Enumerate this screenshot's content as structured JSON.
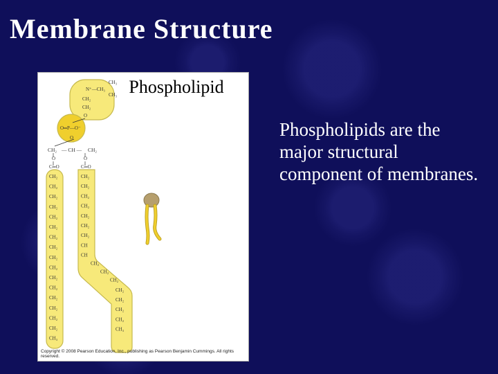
{
  "slide": {
    "title": "Membrane Structure",
    "background_color": "#0f0f5a",
    "gear_tint": "#282882",
    "title_color": "#ffffff",
    "title_fontsize": 40
  },
  "figure": {
    "label": "Phospholipid",
    "label_fontsize": 26,
    "label_color": "#000000",
    "card_bg": "#ffffff",
    "card_border": "#a9a9a9",
    "copyright": "Copyright © 2008 Pearson Education, Inc., publishing as Pearson Benjamin Cummings. All rights reserved.",
    "diagram": {
      "type": "infographic",
      "head_group_fill": "#f7e97a",
      "head_group_stroke": "#c6b94d",
      "phosphate_circle_fill": "#f0cf2d",
      "tail_fill": "#f7e97a",
      "tail_stroke": "#c6b94d",
      "atom_text_color": "#333333",
      "atom_text_fontsize": 7,
      "icon_head_fill": "#b69f6d",
      "icon_head_stroke": "#8b7a4f",
      "icon_tail_fill": "#f0cf2d",
      "icon_tail_stroke": "#b89c1f",
      "head_atoms": [
        "CH₃",
        "N⁺—CH₃",
        "CH₃",
        "CH₂",
        "CH₂",
        "O",
        "O═P—O⁻",
        "O"
      ],
      "glycerol_atoms": [
        "CH₂",
        "CH",
        "CH₂",
        "O",
        "O",
        "C═O",
        "C═O"
      ],
      "tail1_atoms": [
        "CH₂",
        "CH₂",
        "CH₂",
        "CH₂",
        "CH₂",
        "CH₂",
        "CH₂",
        "CH₂",
        "CH₂",
        "CH₂",
        "CH₂",
        "CH₂",
        "CH₂",
        "CH₂",
        "CH₂",
        "CH₂",
        "CH₃"
      ],
      "tail2_atoms": [
        "CH₂",
        "CH₂",
        "CH₂",
        "CH₂",
        "CH₂",
        "CH₂",
        "CH₂",
        "CH",
        "CH",
        "CH₂",
        "CH₂",
        "CH₂",
        "CH₂",
        "CH₂",
        "CH₂",
        "CH₂",
        "CH₃"
      ],
      "tail2_kink_index": 8
    }
  },
  "body": {
    "text": "Phospholipids are the major structural component of membranes.",
    "color": "#ffffff",
    "fontsize": 27
  }
}
